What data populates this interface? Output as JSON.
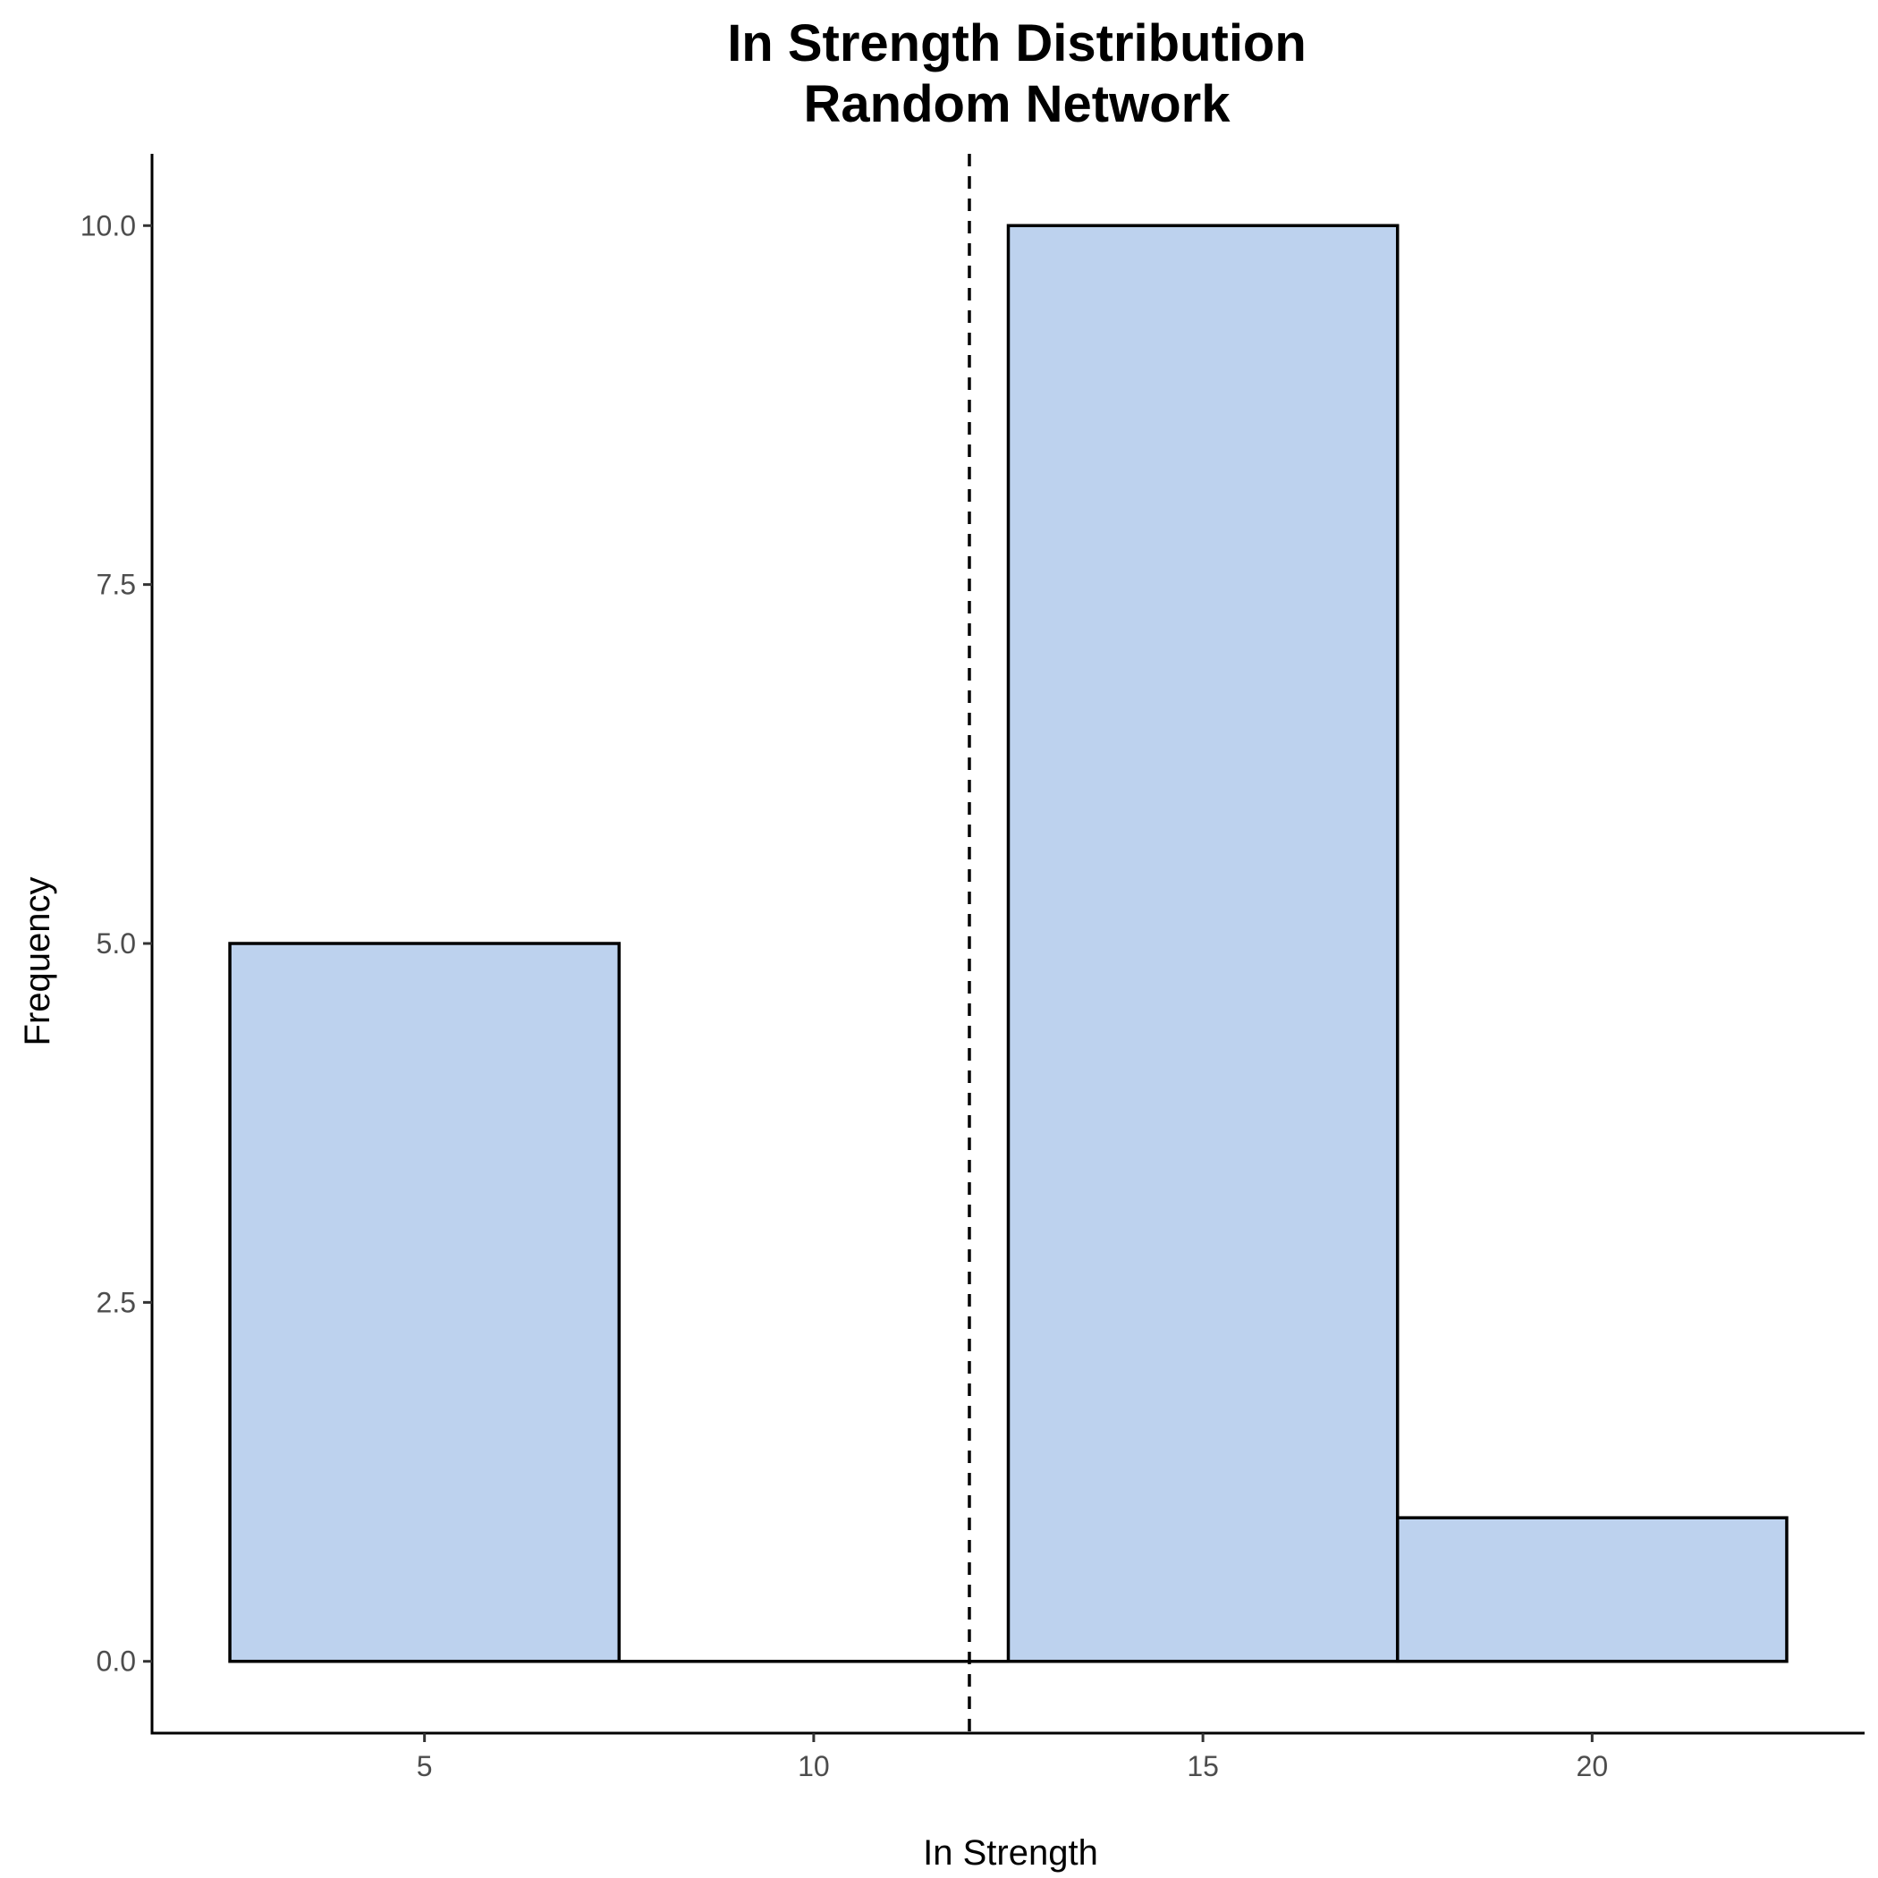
{
  "chart_data": {
    "type": "bar",
    "subtype": "histogram",
    "title": "In Strength Distribution",
    "subtitle": "Random Network",
    "xlabel": "In Strength",
    "ylabel": "Frequency",
    "xlim": [
      1.5,
      23.5
    ],
    "ylim": [
      -0.5,
      10.5
    ],
    "x_ticks": [
      5,
      10,
      15,
      20
    ],
    "x_tick_labels": [
      "5",
      "10",
      "15",
      "20"
    ],
    "y_ticks": [
      0,
      2.5,
      5,
      7.5,
      10
    ],
    "y_tick_labels": [
      "0.0",
      "2.5",
      "5.0",
      "7.5",
      "10.0"
    ],
    "bins": [
      {
        "x_start": 2.5,
        "x_end": 7.5,
        "count": 5
      },
      {
        "x_start": 7.5,
        "x_end": 12.5,
        "count": 0
      },
      {
        "x_start": 12.5,
        "x_end": 17.5,
        "count": 10
      },
      {
        "x_start": 17.5,
        "x_end": 22.5,
        "count": 1
      }
    ],
    "reference_line": {
      "x": 12,
      "style": "dashed",
      "color": "#000000"
    },
    "bar_fill": "#bdd2ee",
    "bar_stroke": "#000000",
    "grid": false,
    "legend": "none"
  }
}
